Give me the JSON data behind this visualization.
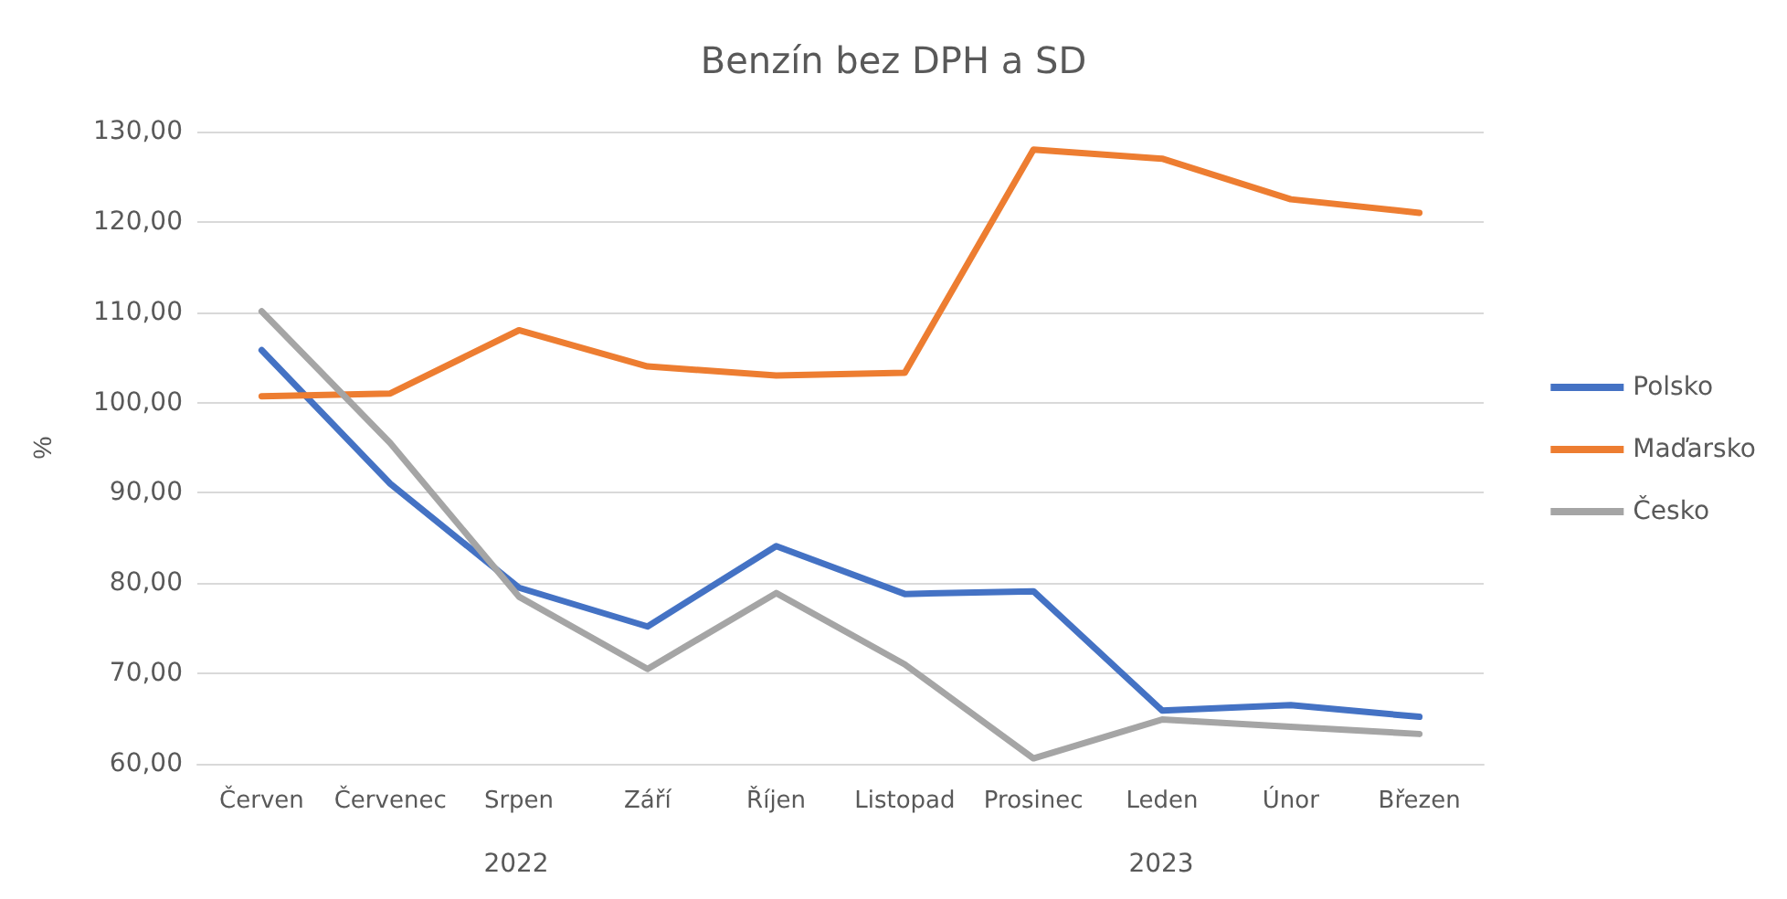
{
  "chart_data": {
    "type": "line",
    "title": "Benzín bez DPH a SD",
    "ylabel": "%",
    "categories": [
      "Červen",
      "Červenec",
      "Srpen",
      "Září",
      "Říjen",
      "Listopad",
      "Prosinec",
      "Leden",
      "Únor",
      "Březen"
    ],
    "series": [
      {
        "name": "Polsko",
        "color": "#4472c4",
        "values": [
          105.8,
          91,
          79.5,
          75.2,
          84.1,
          78.8,
          79.1,
          65.9,
          66.5,
          65.2
        ]
      },
      {
        "name": "Maďarsko",
        "color": "#ed7d31",
        "values": [
          100.7,
          101,
          108,
          104,
          103,
          103.3,
          128,
          127,
          122.5,
          121
        ]
      },
      {
        "name": "Česko",
        "color": "#a5a5a5",
        "values": [
          110.1,
          95.5,
          78.5,
          70.5,
          78.9,
          71,
          60.6,
          64.9,
          64.1,
          63.3
        ]
      }
    ],
    "ylim": [
      60,
      130
    ],
    "yticks": [
      {
        "value": 60,
        "label": "60,00"
      },
      {
        "value": 70,
        "label": "70,00"
      },
      {
        "value": 80,
        "label": "80,00"
      },
      {
        "value": 90,
        "label": "90,00"
      },
      {
        "value": 100,
        "label": "100,00"
      },
      {
        "value": 110,
        "label": "110,00"
      },
      {
        "value": 120,
        "label": "120,00"
      },
      {
        "value": 130,
        "label": "130,00"
      }
    ],
    "annotations": [
      "2022",
      "2023"
    ],
    "grid": "y",
    "legend": "right",
    "marker": "none",
    "line_style": "solid"
  }
}
